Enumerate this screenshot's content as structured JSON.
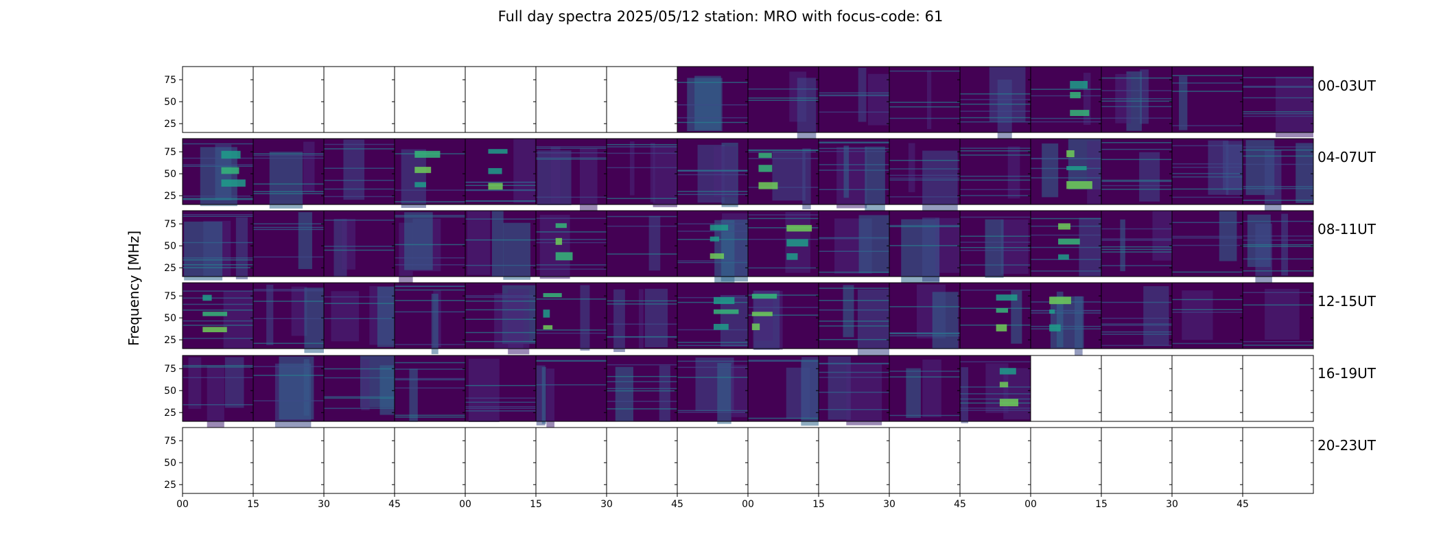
{
  "chart_data": {
    "type": "heatmap",
    "title": "Full day spectra 2025/05/12 station: MRO with focus-code: 61",
    "ylabel": "Frequency [MHz]",
    "xlabel": "",
    "y_ticks": [
      "25",
      "50",
      "75"
    ],
    "x_ticks": [
      "00",
      "15",
      "30",
      "45",
      "00",
      "15",
      "30",
      "45",
      "00",
      "15",
      "30",
      "45",
      "00",
      "15",
      "30",
      "45"
    ],
    "ylim": [
      15,
      90
    ],
    "rows": [
      {
        "label": "00-03UT",
        "data_available": [
          0,
          0,
          0,
          0,
          0,
          0,
          0,
          1,
          1,
          1,
          1,
          1,
          1,
          1,
          1,
          1
        ]
      },
      {
        "label": "04-07UT",
        "data_available": [
          1,
          1,
          1,
          1,
          1,
          1,
          1,
          1,
          1,
          1,
          1,
          1,
          1,
          1,
          1,
          1
        ]
      },
      {
        "label": "08-11UT",
        "data_available": [
          1,
          1,
          1,
          1,
          1,
          1,
          1,
          1,
          1,
          1,
          1,
          1,
          1,
          1,
          1,
          1
        ]
      },
      {
        "label": "12-15UT",
        "data_available": [
          1,
          1,
          1,
          1,
          1,
          1,
          1,
          1,
          1,
          1,
          1,
          1,
          1,
          1,
          1,
          1
        ]
      },
      {
        "label": "16-19UT",
        "data_available": [
          1,
          1,
          1,
          1,
          1,
          1,
          1,
          1,
          1,
          1,
          1,
          1,
          0,
          0,
          0,
          0
        ]
      },
      {
        "label": "20-23UT",
        "data_available": [
          0,
          0,
          0,
          0,
          0,
          0,
          0,
          0,
          0,
          0,
          0,
          0,
          0,
          0,
          0,
          0
        ]
      }
    ],
    "colormap": [
      "#440154",
      "#482878",
      "#3e4a89",
      "#31688e",
      "#26828e",
      "#1f9e89",
      "#35b779",
      "#6ece58"
    ]
  }
}
